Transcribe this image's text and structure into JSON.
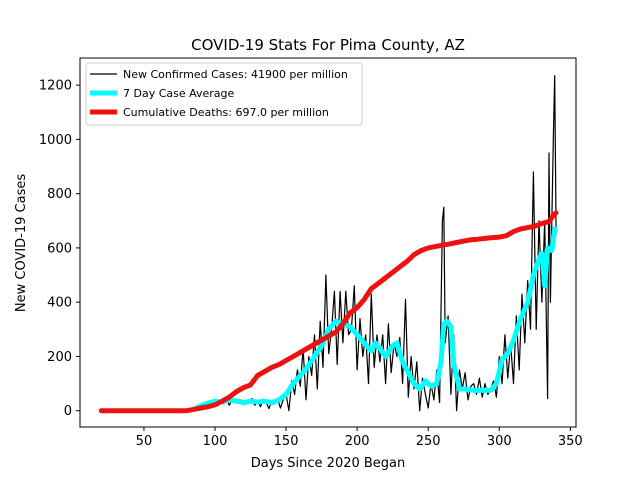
{
  "chart_data": {
    "type": "line",
    "title": "COVID-19 Stats For Pima County, AZ",
    "xlabel": "Days Since 2020 Began",
    "ylabel": "New COVID-19 Cases",
    "xlim": [
      5,
      354
    ],
    "ylim": [
      -60,
      1300
    ],
    "x_ticks": [
      50,
      100,
      150,
      200,
      250,
      300,
      350
    ],
    "y_ticks": [
      0,
      200,
      400,
      600,
      800,
      1000,
      1200
    ],
    "grid": false,
    "legend_position": "top-left",
    "series": [
      {
        "name": "New Confirmed Cases: 41900 per million",
        "color": "#000000",
        "points": [
          [
            20,
            0
          ],
          [
            80,
            0
          ],
          [
            82,
            5
          ],
          [
            85,
            12
          ],
          [
            88,
            20
          ],
          [
            90,
            15
          ],
          [
            92,
            30
          ],
          [
            94,
            8
          ],
          [
            96,
            35
          ],
          [
            98,
            20
          ],
          [
            100,
            42
          ],
          [
            102,
            18
          ],
          [
            104,
            38
          ],
          [
            106,
            25
          ],
          [
            108,
            46
          ],
          [
            110,
            20
          ],
          [
            112,
            40
          ],
          [
            114,
            30
          ],
          [
            116,
            28
          ],
          [
            118,
            40
          ],
          [
            120,
            22
          ],
          [
            122,
            38
          ],
          [
            124,
            30
          ],
          [
            126,
            45
          ],
          [
            128,
            20
          ],
          [
            130,
            35
          ],
          [
            132,
            15
          ],
          [
            134,
            42
          ],
          [
            136,
            30
          ],
          [
            138,
            8
          ],
          [
            140,
            38
          ],
          [
            142,
            25
          ],
          [
            144,
            45
          ],
          [
            146,
            10
          ],
          [
            148,
            40
          ],
          [
            150,
            60
          ],
          [
            152,
            0
          ],
          [
            154,
            110
          ],
          [
            156,
            60
          ],
          [
            158,
            150
          ],
          [
            160,
            90
          ],
          [
            162,
            230
          ],
          [
            164,
            40
          ],
          [
            166,
            200
          ],
          [
            168,
            130
          ],
          [
            170,
            280
          ],
          [
            172,
            80
          ],
          [
            174,
            330
          ],
          [
            176,
            160
          ],
          [
            178,
            500
          ],
          [
            180,
            210
          ],
          [
            182,
            300
          ],
          [
            184,
            440
          ],
          [
            186,
            170
          ],
          [
            188,
            440
          ],
          [
            190,
            250
          ],
          [
            192,
            440
          ],
          [
            194,
            280
          ],
          [
            196,
            300
          ],
          [
            198,
            460
          ],
          [
            200,
            150
          ],
          [
            202,
            340
          ],
          [
            204,
            200
          ],
          [
            206,
            280
          ],
          [
            208,
            100
          ],
          [
            210,
            430
          ],
          [
            212,
            160
          ],
          [
            214,
            280
          ],
          [
            216,
            180
          ],
          [
            218,
            280
          ],
          [
            220,
            100
          ],
          [
            222,
            320
          ],
          [
            224,
            140
          ],
          [
            226,
            250
          ],
          [
            228,
            200
          ],
          [
            230,
            270
          ],
          [
            232,
            100
          ],
          [
            234,
            410
          ],
          [
            236,
            50
          ],
          [
            238,
            200
          ],
          [
            240,
            80
          ],
          [
            242,
            180
          ],
          [
            244,
            0
          ],
          [
            246,
            120
          ],
          [
            248,
            60
          ],
          [
            250,
            10
          ],
          [
            252,
            100
          ],
          [
            254,
            40
          ],
          [
            256,
            150
          ],
          [
            258,
            30
          ],
          [
            260,
            700
          ],
          [
            261,
            750
          ],
          [
            262,
            250
          ],
          [
            264,
            350
          ],
          [
            266,
            60
          ],
          [
            268,
            280
          ],
          [
            270,
            0
          ],
          [
            272,
            150
          ],
          [
            274,
            80
          ],
          [
            276,
            140
          ],
          [
            278,
            40
          ],
          [
            280,
            90
          ],
          [
            282,
            100
          ],
          [
            284,
            60
          ],
          [
            286,
            120
          ],
          [
            288,
            50
          ],
          [
            290,
            100
          ],
          [
            292,
            60
          ],
          [
            294,
            80
          ],
          [
            296,
            110
          ],
          [
            298,
            50
          ],
          [
            300,
            200
          ],
          [
            302,
            100
          ],
          [
            304,
            280
          ],
          [
            306,
            120
          ],
          [
            308,
            250
          ],
          [
            310,
            100
          ],
          [
            312,
            350
          ],
          [
            314,
            150
          ],
          [
            316,
            430
          ],
          [
            318,
            250
          ],
          [
            320,
            480
          ],
          [
            322,
            300
          ],
          [
            324,
            880
          ],
          [
            326,
            300
          ],
          [
            328,
            700
          ],
          [
            330,
            400
          ],
          [
            332,
            700
          ],
          [
            334,
            45
          ],
          [
            335,
            950
          ],
          [
            336,
            400
          ],
          [
            338,
            1000
          ],
          [
            339,
            1235
          ],
          [
            340,
            650
          ]
        ]
      },
      {
        "name": "7 Day Case Average",
        "color": "#00ffff",
        "points": [
          [
            85,
            5
          ],
          [
            90,
            18
          ],
          [
            95,
            28
          ],
          [
            100,
            35
          ],
          [
            105,
            32
          ],
          [
            110,
            40
          ],
          [
            115,
            36
          ],
          [
            120,
            30
          ],
          [
            125,
            35
          ],
          [
            130,
            32
          ],
          [
            135,
            35
          ],
          [
            140,
            30
          ],
          [
            145,
            40
          ],
          [
            150,
            60
          ],
          [
            155,
            100
          ],
          [
            160,
            130
          ],
          [
            165,
            160
          ],
          [
            170,
            200
          ],
          [
            175,
            240
          ],
          [
            180,
            300
          ],
          [
            185,
            330
          ],
          [
            190,
            320
          ],
          [
            195,
            310
          ],
          [
            200,
            280
          ],
          [
            205,
            250
          ],
          [
            210,
            220
          ],
          [
            213,
            250
          ],
          [
            216,
            230
          ],
          [
            220,
            200
          ],
          [
            225,
            240
          ],
          [
            228,
            250
          ],
          [
            232,
            180
          ],
          [
            236,
            140
          ],
          [
            240,
            100
          ],
          [
            244,
            80
          ],
          [
            248,
            110
          ],
          [
            252,
            90
          ],
          [
            256,
            100
          ],
          [
            259,
            180
          ],
          [
            261,
            320
          ],
          [
            263,
            330
          ],
          [
            266,
            310
          ],
          [
            268,
            170
          ],
          [
            272,
            80
          ],
          [
            276,
            80
          ],
          [
            282,
            75
          ],
          [
            288,
            75
          ],
          [
            294,
            75
          ],
          [
            298,
            100
          ],
          [
            302,
            190
          ],
          [
            306,
            210
          ],
          [
            310,
            260
          ],
          [
            315,
            340
          ],
          [
            320,
            400
          ],
          [
            324,
            500
          ],
          [
            328,
            560
          ],
          [
            330,
            580
          ],
          [
            332,
            460
          ],
          [
            334,
            600
          ],
          [
            337,
            590
          ],
          [
            339,
            670
          ]
        ]
      },
      {
        "name": "Cumulative Deaths: 697.0 per million",
        "color": "#ee1111",
        "points": [
          [
            20,
            0
          ],
          [
            80,
            0
          ],
          [
            85,
            5
          ],
          [
            90,
            10
          ],
          [
            95,
            15
          ],
          [
            100,
            22
          ],
          [
            105,
            35
          ],
          [
            110,
            50
          ],
          [
            115,
            70
          ],
          [
            120,
            85
          ],
          [
            125,
            95
          ],
          [
            130,
            130
          ],
          [
            135,
            145
          ],
          [
            140,
            160
          ],
          [
            145,
            170
          ],
          [
            150,
            185
          ],
          [
            155,
            200
          ],
          [
            160,
            215
          ],
          [
            165,
            230
          ],
          [
            170,
            245
          ],
          [
            175,
            260
          ],
          [
            180,
            275
          ],
          [
            185,
            290
          ],
          [
            190,
            320
          ],
          [
            195,
            360
          ],
          [
            200,
            380
          ],
          [
            205,
            410
          ],
          [
            210,
            450
          ],
          [
            215,
            470
          ],
          [
            220,
            490
          ],
          [
            225,
            510
          ],
          [
            230,
            530
          ],
          [
            235,
            550
          ],
          [
            240,
            575
          ],
          [
            245,
            590
          ],
          [
            250,
            600
          ],
          [
            255,
            605
          ],
          [
            260,
            610
          ],
          [
            265,
            615
          ],
          [
            270,
            620
          ],
          [
            275,
            625
          ],
          [
            280,
            630
          ],
          [
            285,
            632
          ],
          [
            290,
            635
          ],
          [
            295,
            638
          ],
          [
            300,
            640
          ],
          [
            305,
            645
          ],
          [
            310,
            660
          ],
          [
            315,
            670
          ],
          [
            320,
            675
          ],
          [
            325,
            680
          ],
          [
            330,
            690
          ],
          [
            335,
            697
          ],
          [
            338,
            720
          ],
          [
            340,
            730
          ]
        ]
      }
    ]
  }
}
